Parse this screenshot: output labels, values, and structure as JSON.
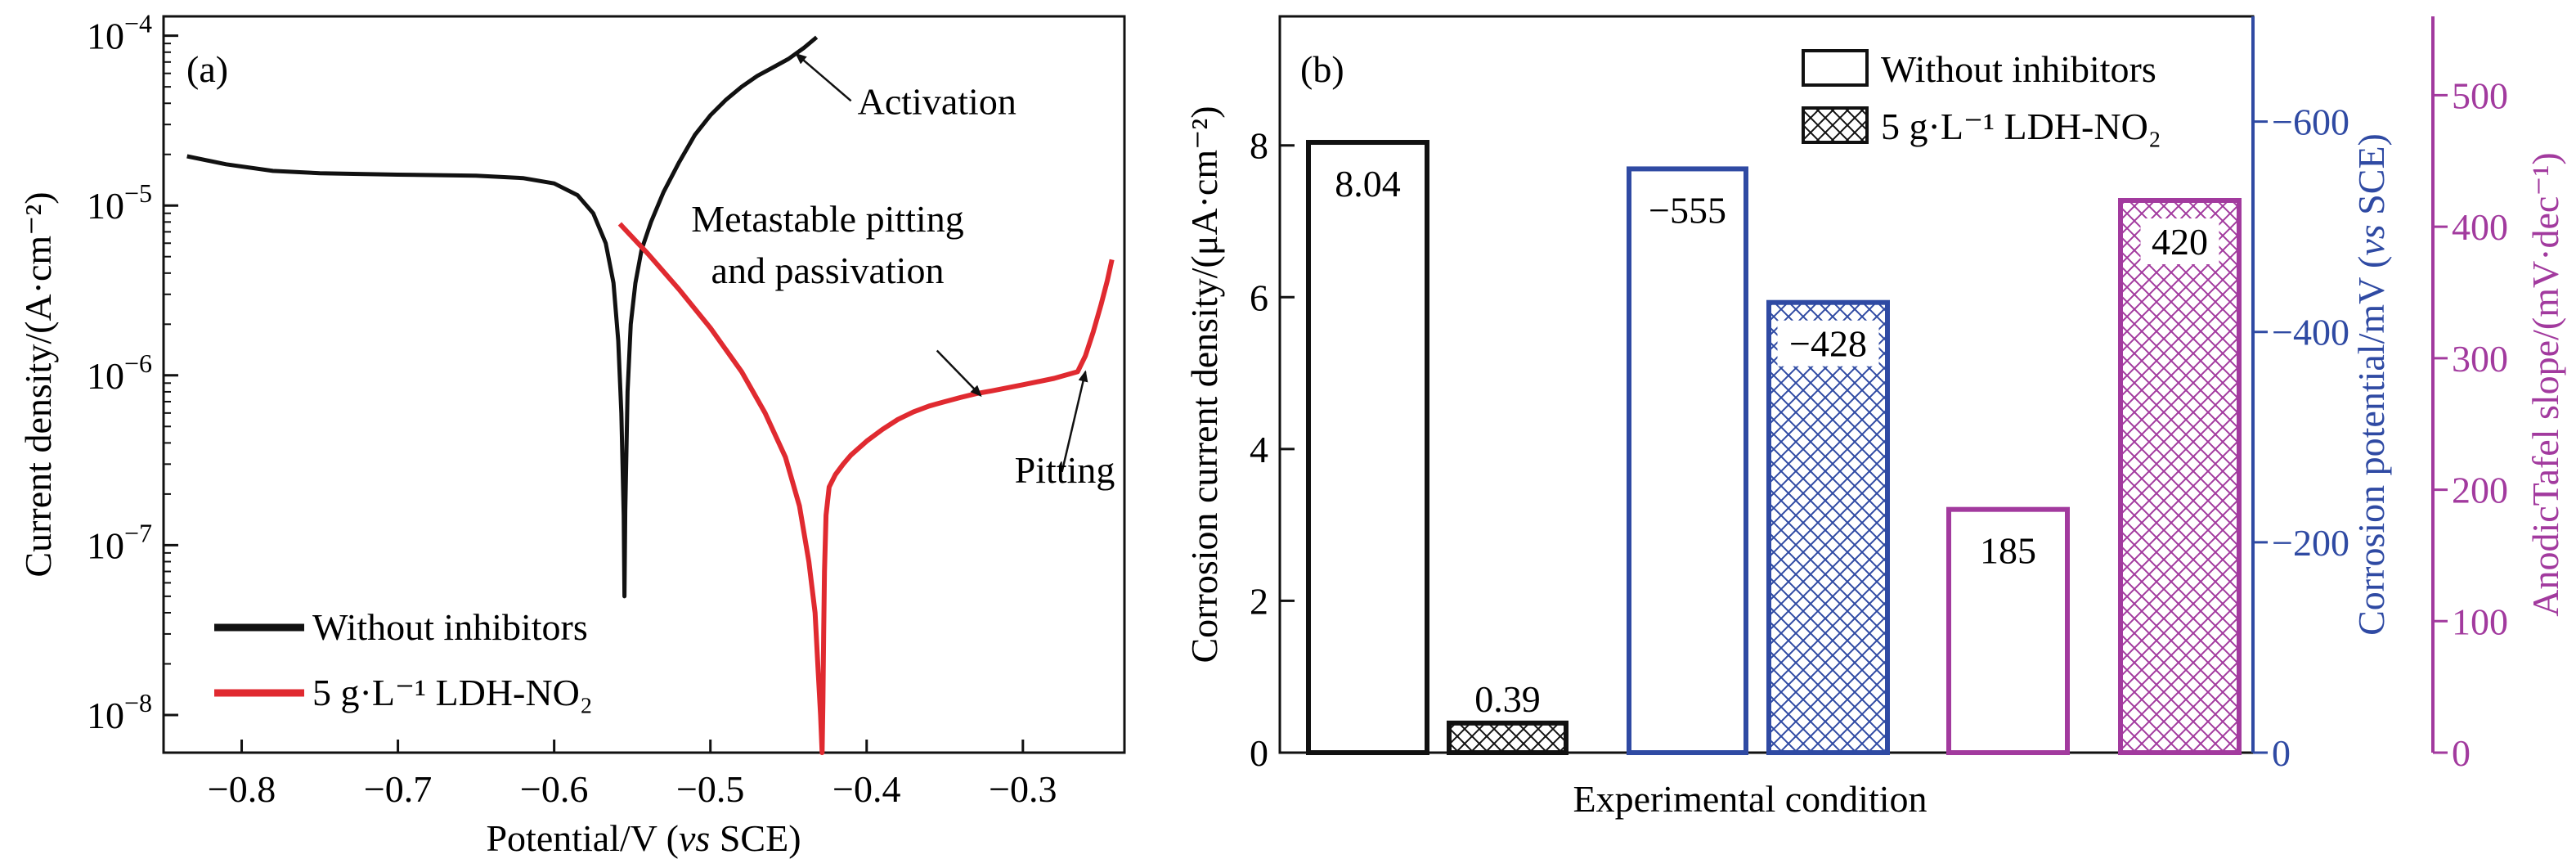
{
  "colors": {
    "black": "#111111",
    "red": "#e02a30",
    "blue": "#2f4aa3",
    "purple": "#a23a9e"
  },
  "chart_data": [
    {
      "type": "line",
      "panel_label": "(a)",
      "xlabel_main": "Potential/V (",
      "xlabel_italic": "vs",
      "xlabel_tail": " SCE)",
      "ylabel": "Current density/(A·cm⁻²)",
      "xlim": [
        -0.85,
        -0.235
      ],
      "ylim": [
        6e-09,
        0.00013
      ],
      "yscale": "log",
      "xticks": [
        -0.8,
        -0.7,
        -0.6,
        -0.5,
        -0.4,
        -0.3
      ],
      "xtick_labels": [
        "−0.8",
        "−0.7",
        "−0.6",
        "−0.5",
        "−0.4",
        "−0.3"
      ],
      "yticks": [
        {
          "value": 0.0001,
          "exp": "−4"
        },
        {
          "value": 1e-05,
          "exp": "−5"
        },
        {
          "value": 1e-06,
          "exp": "−6"
        },
        {
          "value": 1e-07,
          "exp": "−7"
        },
        {
          "value": 1e-08,
          "exp": "−8"
        }
      ],
      "ytick_base": "10",
      "series": [
        {
          "name": "Without inhibitors",
          "color": "#111111",
          "x": [
            -0.835,
            -0.81,
            -0.78,
            -0.75,
            -0.7,
            -0.65,
            -0.62,
            -0.6,
            -0.585,
            -0.575,
            -0.567,
            -0.562,
            -0.559,
            -0.557,
            -0.5555,
            -0.555,
            -0.5545,
            -0.553,
            -0.551,
            -0.548,
            -0.544,
            -0.538,
            -0.53,
            -0.52,
            -0.51,
            -0.5,
            -0.49,
            -0.48,
            -0.47,
            -0.46,
            -0.45,
            -0.44,
            -0.432
          ],
          "y": [
            1.95e-05,
            1.75e-05,
            1.6e-05,
            1.55e-05,
            1.52e-05,
            1.5e-05,
            1.45e-05,
            1.35e-05,
            1.15e-05,
            9e-06,
            6e-06,
            3.5e-06,
            1.6e-06,
            6e-07,
            1.5e-07,
            5e-08,
            1.6e-07,
            8e-07,
            2e-06,
            3.5e-06,
            5.5e-06,
            8e-06,
            1.2e-05,
            1.8e-05,
            2.6e-05,
            3.4e-05,
            4.2e-05,
            5e-05,
            5.8e-05,
            6.5e-05,
            7.3e-05,
            8.5e-05,
            9.8e-05
          ]
        },
        {
          "name": "5 g·L⁻¹ LDH-NO₂",
          "color": "#e02a30",
          "x": [
            -0.558,
            -0.54,
            -0.52,
            -0.5,
            -0.48,
            -0.465,
            -0.452,
            -0.443,
            -0.437,
            -0.433,
            -0.431,
            -0.4295,
            -0.4285,
            -0.428,
            -0.4275,
            -0.427,
            -0.426,
            -0.424,
            -0.42,
            -0.415,
            -0.41,
            -0.4,
            -0.39,
            -0.38,
            -0.37,
            -0.36,
            -0.35,
            -0.34,
            -0.33,
            -0.32,
            -0.3,
            -0.28,
            -0.265,
            -0.26,
            -0.255,
            -0.25,
            -0.246,
            -0.243
          ],
          "y": [
            7.8e-06,
            5.2e-06,
            3.2e-06,
            1.9e-06,
            1.05e-06,
            6e-07,
            3.3e-07,
            1.7e-07,
            8e-08,
            4e-08,
            1.8e-08,
            1e-08,
            6e-09,
            1.2e-08,
            3e-08,
            7e-08,
            1.5e-07,
            2.2e-07,
            2.6e-07,
            3e-07,
            3.4e-07,
            4.1e-07,
            4.8e-07,
            5.5e-07,
            6.1e-07,
            6.6e-07,
            7e-07,
            7.4e-07,
            7.8e-07,
            8.1e-07,
            8.8e-07,
            9.6e-07,
            1.05e-06,
            1.3e-06,
            1.8e-06,
            2.6e-06,
            3.6e-06,
            4.8e-06
          ]
        }
      ],
      "annotations": [
        {
          "text": "Activation",
          "tip": [
            -0.445,
            7.8e-05
          ],
          "tail": [
            -0.41,
            3.7e-05
          ]
        },
        {
          "text": "Metastable pitting",
          "second_line": "and passivation",
          "tip": [
            -0.327,
            7.6e-07
          ],
          "tail": [
            -0.355,
            1.4e-06
          ]
        },
        {
          "text": "Pitting",
          "tip": [
            -0.26,
            1.05e-06
          ],
          "tail": [
            -0.275,
            2.7e-07
          ]
        }
      ],
      "legend_position": "bottom-left"
    },
    {
      "type": "bar",
      "panel_label": "(b)",
      "xlabel": "Experimental condition",
      "ylabel_left": "Corrosion current density/(μA·cm⁻²)",
      "ylabel_mid_main": "Corrosion potential/mV (",
      "ylabel_mid_italic": "vs",
      "ylabel_mid_tail": " SCE)",
      "ylabel_right": "AnodicTafel slope/(mV·dec⁻¹)",
      "left_axis": {
        "lim": [
          0,
          9.7
        ],
        "ticks": [
          0,
          2,
          4,
          6,
          8
        ],
        "tick_labels": [
          "0",
          "2",
          "4",
          "6",
          "8"
        ]
      },
      "mid_axis": {
        "lim": [
          0,
          -700
        ],
        "ticks": [
          0,
          -200,
          -400,
          -600
        ],
        "tick_labels": [
          "0",
          "−200",
          "−400",
          "−600"
        ]
      },
      "right_axis": {
        "lim": [
          0,
          560
        ],
        "ticks": [
          0,
          100,
          200,
          300,
          400,
          500
        ],
        "tick_labels": [
          "0",
          "100",
          "200",
          "300",
          "400",
          "500"
        ]
      },
      "groups": [
        {
          "quantity": "Corrosion current density",
          "axis": "left",
          "color": "#111111",
          "values": [
            8.04,
            0.39
          ],
          "labels": [
            "8.04",
            "0.39"
          ]
        },
        {
          "quantity": "Corrosion potential",
          "axis": "mid",
          "color": "#2f4aa3",
          "values": [
            -555,
            -428
          ],
          "labels": [
            "−555",
            "−428"
          ]
        },
        {
          "quantity": "Anodic Tafel slope",
          "axis": "right",
          "color": "#a23a9e",
          "values": [
            185,
            420
          ],
          "labels": [
            "185",
            "420"
          ]
        }
      ],
      "legend": [
        "Without inhibitors",
        "5 g·L⁻¹ LDH-NO₂"
      ],
      "legend_position": "top-right"
    }
  ]
}
